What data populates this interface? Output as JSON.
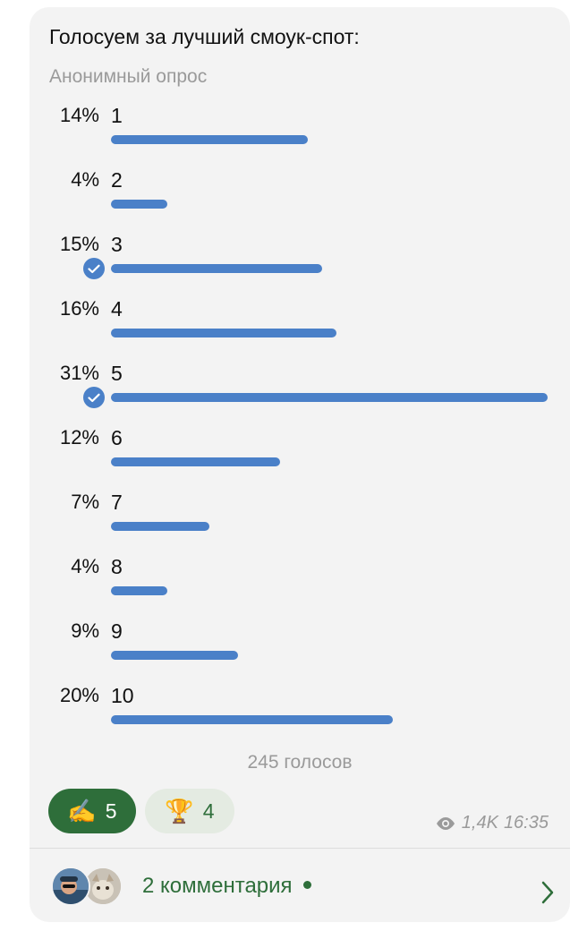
{
  "poll": {
    "title": "Голосуем за лучший смоук-спот:",
    "subtitle": "Анонимный опрос",
    "options": [
      {
        "label": "1",
        "percent_text": "14%",
        "percent": 14,
        "voted": false
      },
      {
        "label": "2",
        "percent_text": "4%",
        "percent": 4,
        "voted": false
      },
      {
        "label": "3",
        "percent_text": "15%",
        "percent": 15,
        "voted": true
      },
      {
        "label": "4",
        "percent_text": "16%",
        "percent": 16,
        "voted": false
      },
      {
        "label": "5",
        "percent_text": "31%",
        "percent": 31,
        "voted": true
      },
      {
        "label": "6",
        "percent_text": "12%",
        "percent": 12,
        "voted": false
      },
      {
        "label": "7",
        "percent_text": "7%",
        "percent": 7,
        "voted": false
      },
      {
        "label": "8",
        "percent_text": "4%",
        "percent": 4,
        "voted": false
      },
      {
        "label": "9",
        "percent_text": "9%",
        "percent": 9,
        "voted": false
      },
      {
        "label": "10",
        "percent_text": "20%",
        "percent": 20,
        "voted": false
      }
    ],
    "total_votes": "245 голосов"
  },
  "reactions": [
    {
      "emoji": "✍️",
      "icon": "writing-hand-icon",
      "count": "5",
      "active": true
    },
    {
      "emoji": "🏆",
      "icon": "trophy-icon",
      "count": "4",
      "active": false
    }
  ],
  "meta": {
    "views": "1,4K",
    "time": "16:35"
  },
  "comments": {
    "label": "2 комментария"
  },
  "colors": {
    "bubble": "#f3f3f3",
    "bar": "#4a80c8",
    "accent_green": "#2e6e3a",
    "muted": "#9a9a9a"
  }
}
